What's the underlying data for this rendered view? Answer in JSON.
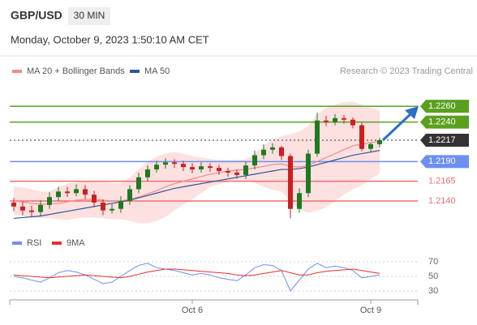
{
  "header": {
    "symbol": "GBP/USD",
    "interval": "30 MIN",
    "timestamp": "Monday, October 9, 2023 1:50:10 AM CET",
    "credit": "Research © 2023 Trading Central"
  },
  "chart_data": [
    {
      "type": "candlestick",
      "categories": [
        null,
        null,
        null,
        null,
        null,
        null,
        null,
        null,
        null,
        null,
        null,
        null,
        null,
        null,
        null,
        null,
        null,
        null,
        null,
        null,
        "Oct 6",
        null,
        null,
        null,
        null,
        null,
        null,
        null,
        null,
        null,
        null,
        null,
        null,
        null,
        null,
        null,
        null,
        null,
        null,
        null,
        "Oct 9",
        null
      ],
      "open": [
        1.2138,
        1.2133,
        1.2128,
        1.2126,
        1.2135,
        1.2145,
        1.2152,
        1.215,
        1.2155,
        1.2148,
        1.2138,
        1.2128,
        1.213,
        1.214,
        1.2155,
        1.217,
        1.218,
        1.2186,
        1.2189,
        1.2187,
        1.2183,
        1.218,
        1.2184,
        1.2182,
        1.2178,
        1.2176,
        1.2173,
        1.2185,
        1.2198,
        1.2205,
        1.2208,
        1.2197,
        1.213,
        1.215,
        1.22,
        1.2242,
        1.224,
        1.2245,
        1.2243,
        1.2236,
        1.2206,
        1.2212
      ],
      "high": [
        1.2144,
        1.2139,
        1.2134,
        1.2141,
        1.2151,
        1.2158,
        1.2158,
        1.2161,
        1.216,
        1.2153,
        1.2142,
        1.2136,
        1.2146,
        1.216,
        1.2176,
        1.2185,
        1.2191,
        1.2194,
        1.2193,
        1.2191,
        1.2188,
        1.2189,
        1.2188,
        1.2186,
        1.2182,
        1.218,
        1.219,
        1.2204,
        1.2212,
        1.2213,
        1.221,
        1.22,
        1.2156,
        1.2205,
        1.2252,
        1.2248,
        1.225,
        1.2249,
        1.2246,
        1.2239,
        1.2214,
        1.222
      ],
      "low": [
        1.2127,
        1.2122,
        1.212,
        1.2121,
        1.213,
        1.214,
        1.2145,
        1.2146,
        1.2142,
        1.2132,
        1.2122,
        1.2124,
        1.2125,
        1.2135,
        1.215,
        1.2165,
        1.2176,
        1.2181,
        1.2182,
        1.2178,
        1.2175,
        1.2176,
        1.2177,
        1.2173,
        1.2171,
        1.2168,
        1.2168,
        1.218,
        1.2193,
        1.22,
        1.2192,
        1.2118,
        1.2125,
        1.2145,
        1.2196,
        1.2235,
        1.2236,
        1.2238,
        1.2232,
        1.2203,
        1.2202,
        1.2208
      ],
      "close": [
        1.2133,
        1.2128,
        1.2126,
        1.2135,
        1.2145,
        1.2152,
        1.215,
        1.2155,
        1.2148,
        1.2138,
        1.2128,
        1.213,
        1.214,
        1.2155,
        1.217,
        1.218,
        1.2186,
        1.2189,
        1.2187,
        1.2183,
        1.218,
        1.2184,
        1.2182,
        1.2178,
        1.2176,
        1.2173,
        1.2185,
        1.2198,
        1.2205,
        1.2208,
        1.2197,
        1.213,
        1.215,
        1.22,
        1.2242,
        1.224,
        1.2245,
        1.2243,
        1.2236,
        1.2206,
        1.2212,
        1.2217
      ],
      "up_color": "#1f7a1f",
      "down_color": "#cc2020",
      "series": [
        {
          "name": "MA 20 + Bollinger Bands",
          "color": "#f28b8b",
          "band_color": "#fde0e0",
          "values": [
            1.214,
            1.2139,
            1.2137,
            1.2136,
            1.2136,
            1.2137,
            1.2139,
            1.2141,
            1.2142,
            1.2142,
            1.2141,
            1.214,
            1.214,
            1.2142,
            1.2145,
            1.2149,
            1.2153,
            1.2158,
            1.2162,
            1.2165,
            1.2168,
            1.2171,
            1.2174,
            1.2176,
            1.2178,
            1.2179,
            1.218,
            1.2182,
            1.2184,
            1.2186,
            1.2187,
            1.2184,
            1.2183,
            1.2185,
            1.219,
            1.2195,
            1.22,
            1.2205,
            1.221,
            1.2212,
            1.2214,
            1.2216
          ],
          "upper": [
            1.2158,
            1.2157,
            1.2155,
            1.2152,
            1.2152,
            1.2158,
            1.2162,
            1.2164,
            1.2165,
            1.2165,
            1.2164,
            1.2163,
            1.2163,
            1.217,
            1.218,
            1.219,
            1.2196,
            1.22,
            1.2202,
            1.22,
            1.2197,
            1.2195,
            1.2193,
            1.2192,
            1.2192,
            1.2192,
            1.2193,
            1.22,
            1.221,
            1.2218,
            1.2222,
            1.2225,
            1.2228,
            1.2235,
            1.225,
            1.2258,
            1.2262,
            1.2265,
            1.2266,
            1.2262,
            1.2258,
            1.2255
          ],
          "lower": [
            1.2122,
            1.2121,
            1.2119,
            1.2118,
            1.2118,
            1.2117,
            1.2116,
            1.2118,
            1.2119,
            1.2119,
            1.2118,
            1.2117,
            1.2117,
            1.2115,
            1.2112,
            1.2112,
            1.2115,
            1.212,
            1.2128,
            1.2135,
            1.2142,
            1.215,
            1.2158,
            1.2161,
            1.2164,
            1.2166,
            1.2166,
            1.2163,
            1.2158,
            1.2154,
            1.2152,
            1.214,
            1.213,
            1.2125,
            1.2128,
            1.2132,
            1.214,
            1.2148,
            1.2155,
            1.216,
            1.2168,
            1.2175
          ]
        },
        {
          "name": "MA 50",
          "color": "#2f5597",
          "values": [
            1.2118,
            1.2119,
            1.212,
            1.2121,
            1.2123,
            1.2125,
            1.2127,
            1.2129,
            1.2131,
            1.2133,
            1.2135,
            1.2137,
            1.2139,
            1.2141,
            1.2144,
            1.2147,
            1.215,
            1.2153,
            1.2156,
            1.2158,
            1.216,
            1.2162,
            1.2164,
            1.2166,
            1.2168,
            1.217,
            1.2172,
            1.2174,
            1.2176,
            1.2178,
            1.218,
            1.218,
            1.2181,
            1.2183,
            1.2186,
            1.2189,
            1.2192,
            1.2195,
            1.2198,
            1.22,
            1.2202,
            1.2204
          ]
        }
      ],
      "levels": [
        {
          "value": 1.226,
          "label": "1.2260",
          "color": "#5aa01e",
          "label_style": "box"
        },
        {
          "value": 1.224,
          "label": "1.2240",
          "color": "#5aa01e",
          "label_style": "box"
        },
        {
          "value": 1.2217,
          "label": "1.2217",
          "color": "#333333",
          "label_style": "box",
          "dotted": true
        },
        {
          "value": 1.219,
          "label": "1.2190",
          "color": "#6d8ff0",
          "label_style": "box"
        },
        {
          "value": 1.2165,
          "label": "1.2165",
          "color": "#ef6f6f",
          "label_style": "text"
        },
        {
          "value": 1.214,
          "label": "1.2140",
          "color": "#ef6f6f",
          "label_style": "text"
        }
      ],
      "ylim": [
        1.2102,
        1.2292
      ]
    },
    {
      "type": "line",
      "series": [
        {
          "name": "RSI",
          "color": "#6d8ff0",
          "values": [
            50,
            48,
            45,
            42,
            48,
            55,
            58,
            56,
            52,
            46,
            40,
            42,
            50,
            58,
            65,
            68,
            62,
            60,
            58,
            55,
            52,
            54,
            52,
            48,
            46,
            44,
            52,
            62,
            66,
            65,
            58,
            30,
            45,
            60,
            68,
            62,
            64,
            62,
            58,
            48,
            50,
            52
          ]
        },
        {
          "name": "9MA",
          "color": "#e53030",
          "values": [
            52,
            51,
            50,
            49,
            48,
            49,
            50,
            51,
            52,
            51,
            50,
            49,
            48,
            50,
            53,
            56,
            58,
            60,
            60,
            59,
            58,
            57,
            56,
            55,
            54,
            52,
            51,
            52,
            54,
            56,
            58,
            55,
            52,
            52,
            55,
            57,
            58,
            59,
            60,
            58,
            56,
            54
          ]
        }
      ],
      "ylim": [
        20,
        80
      ],
      "yticks": [
        70,
        50,
        30
      ],
      "grid": true
    }
  ]
}
